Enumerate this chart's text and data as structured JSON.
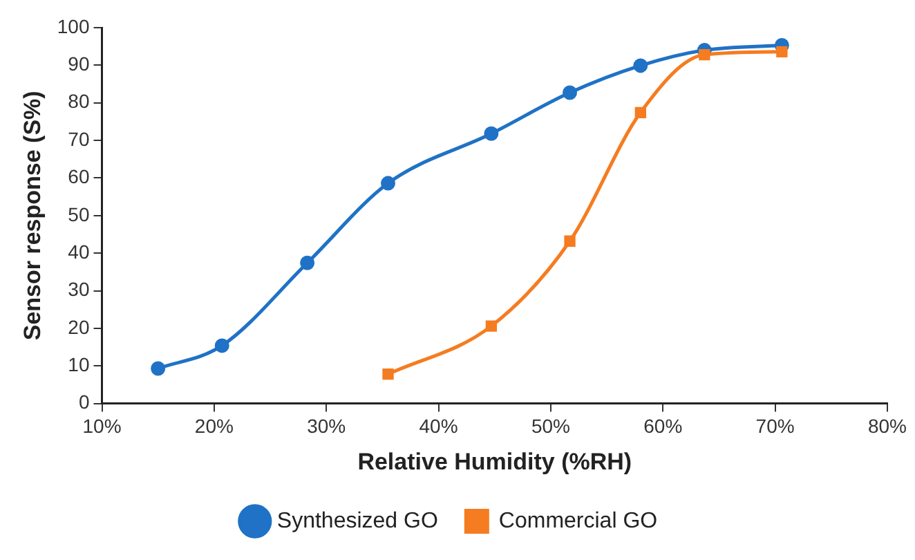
{
  "chart_data": {
    "type": "line",
    "xlabel": "Relative Humidity (%RH)",
    "ylabel": "Sensor response (S%)",
    "xlim": [
      10,
      80
    ],
    "xticks": [
      {
        "value": 10,
        "label": "10%"
      },
      {
        "value": 20,
        "label": "20%"
      },
      {
        "value": 30,
        "label": "30%"
      },
      {
        "value": 40,
        "label": "40%"
      },
      {
        "value": 50,
        "label": "50%"
      },
      {
        "value": 60,
        "label": "60%"
      },
      {
        "value": 70,
        "label": "70%"
      },
      {
        "value": 80,
        "label": "80%"
      }
    ],
    "ylim": [
      0,
      100
    ],
    "yticks": [
      0,
      10,
      20,
      30,
      40,
      50,
      60,
      70,
      80,
      90,
      100
    ],
    "grid": false,
    "legend": "bottom",
    "series": [
      {
        "name": "Synthesized GO",
        "color": "#1f72c6",
        "marker": "circle",
        "x": [
          15.0,
          20.7,
          28.3,
          35.5,
          44.7,
          51.7,
          58.0,
          63.7,
          70.6
        ],
        "values": [
          9.3,
          15.4,
          37.4,
          58.6,
          71.8,
          82.7,
          89.9,
          94.0,
          95.3
        ]
      },
      {
        "name": "Commercial GO",
        "color": "#f57c20",
        "marker": "square",
        "x": [
          35.5,
          44.7,
          51.7,
          58.0,
          63.7,
          70.6
        ],
        "values": [
          7.8,
          20.6,
          43.2,
          77.4,
          92.8,
          93.6
        ]
      }
    ]
  }
}
